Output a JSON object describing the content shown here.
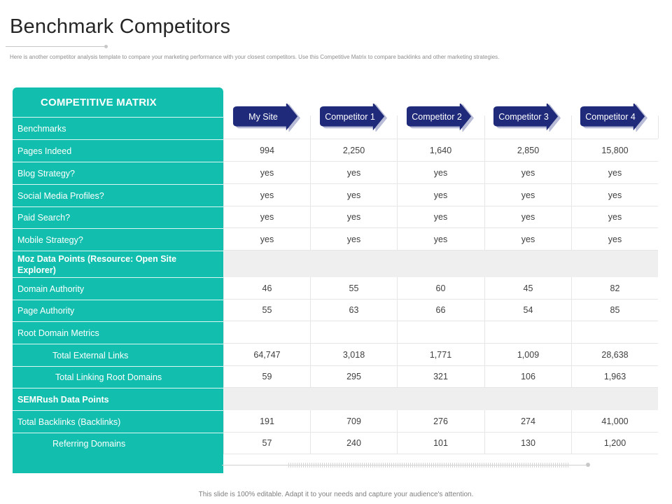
{
  "title": "Benchmark Competitors",
  "subtitle": "Here is another competitor analysis template to compare your marketing performance with your closest competitors. Use this Competitive Matrix to compare backlinks and other marketing strategies.",
  "matrix_title": "COMPETITIVE MATRIX",
  "columns": [
    "My Site",
    "Competitor 1",
    "Competitor 2",
    "Competitor 3",
    "Competitor 4"
  ],
  "accent_color": "#12bfae",
  "arrow_color": "#1f2a7a",
  "rows": [
    {
      "label": "Benchmarks",
      "values": [
        "",
        "",
        "",
        "",
        ""
      ]
    },
    {
      "label": "Pages Indeed",
      "values": [
        "994",
        "2,250",
        "1,640",
        "2,850",
        "15,800"
      ]
    },
    {
      "label": "Blog Strategy?",
      "values": [
        "yes",
        "yes",
        "yes",
        "yes",
        "yes"
      ]
    },
    {
      "label": "Social Media Profiles?",
      "values": [
        "yes",
        "yes",
        "yes",
        "yes",
        "yes"
      ]
    },
    {
      "label": "Paid Search?",
      "values": [
        "yes",
        "yes",
        "yes",
        "yes",
        "yes"
      ]
    },
    {
      "label": "Mobile Strategy?",
      "values": [
        "yes",
        "yes",
        "yes",
        "yes",
        "yes"
      ]
    },
    {
      "label": "Moz Data Points (Resource:  Open Site Explorer)",
      "values": [
        "",
        "",
        "",
        "",
        ""
      ]
    },
    {
      "label": "Domain Authority",
      "values": [
        "46",
        "55",
        "60",
        "45",
        "82"
      ]
    },
    {
      "label": "Page Authority",
      "values": [
        "55",
        "63",
        "66",
        "54",
        "85"
      ]
    },
    {
      "label": "Root Domain Metrics",
      "values": [
        "",
        "",
        "",
        "",
        ""
      ]
    },
    {
      "label": "Total External Links",
      "values": [
        "64,747",
        "3,018",
        "1,771",
        "1,009",
        "28,638"
      ]
    },
    {
      "label": "Total Linking Root Domains",
      "values": [
        "59",
        "295",
        "321",
        "106",
        "1,963"
      ]
    },
    {
      "label": "SEMRush  Data Points",
      "values": [
        "",
        "",
        "",
        "",
        ""
      ]
    },
    {
      "label": "Total Backlinks (Backlinks)",
      "values": [
        "191",
        "709",
        "276",
        "274",
        "41,000"
      ]
    },
    {
      "label": "Referring Domains",
      "values": [
        "57",
        "240",
        "101",
        "130",
        "1,200"
      ]
    }
  ],
  "footer": "This slide is 100% editable.  Adapt it to your needs and capture your audience's attention."
}
